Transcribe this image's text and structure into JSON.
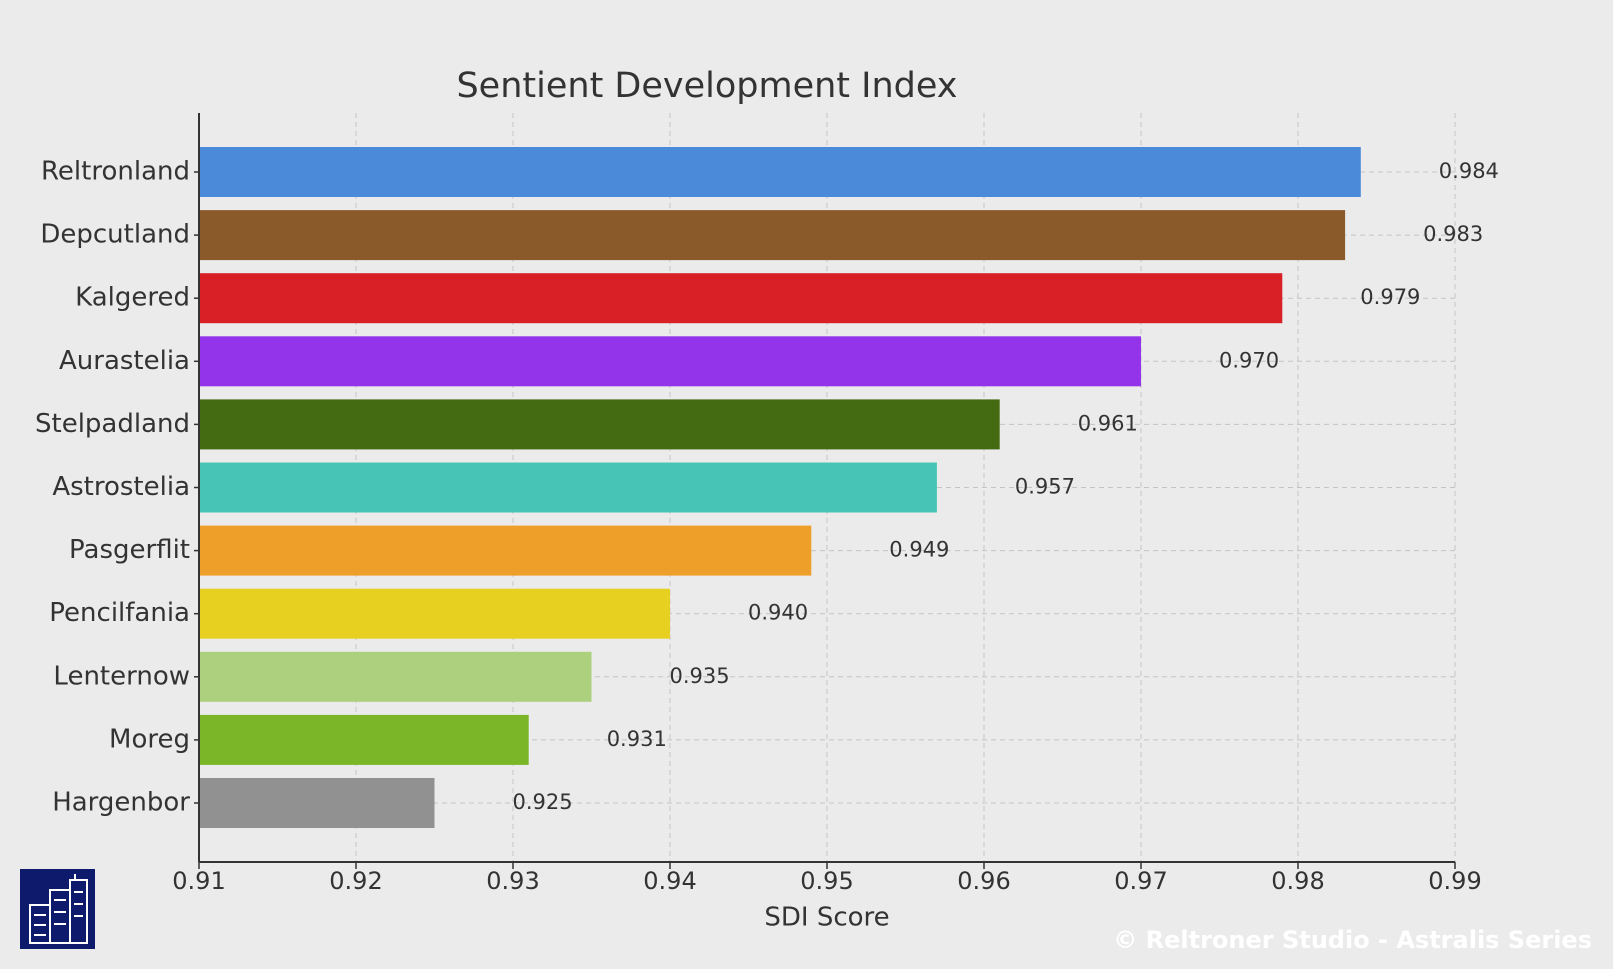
{
  "chart_data": {
    "type": "barh",
    "title": "Sentient Development Index",
    "x_label": "SDI Score",
    "categories": [
      "Reltronland",
      "Depcutland",
      "Kalgered",
      "Aurastelia",
      "Stelpadland",
      "Astrostelia",
      "Pasgerflit",
      "Pencilfania",
      "Lenternow",
      "Moreg",
      "Hargenbor"
    ],
    "values": [
      0.984,
      0.983,
      0.979,
      0.97,
      0.961,
      0.957,
      0.949,
      0.94,
      0.935,
      0.931,
      0.925
    ],
    "value_labels": [
      "0.984",
      "0.983",
      "0.979",
      "0.970",
      "0.961",
      "0.957",
      "0.949",
      "0.940",
      "0.935",
      "0.931",
      "0.925"
    ],
    "colors": [
      "#4a8ad8",
      "#8b5a2b",
      "#d92027",
      "#9333ea",
      "#456b12",
      "#48c4b6",
      "#ed9f2a",
      "#e8d020",
      "#acd07e",
      "#7ab628",
      "#919191"
    ],
    "xlim": [
      0.91,
      0.99
    ],
    "xticks": [
      0.91,
      0.92,
      0.93,
      0.94,
      0.95,
      0.96,
      0.97,
      0.98,
      0.99
    ],
    "grid": true,
    "watermark": "© Reltroner Studio - Astralis Series"
  }
}
